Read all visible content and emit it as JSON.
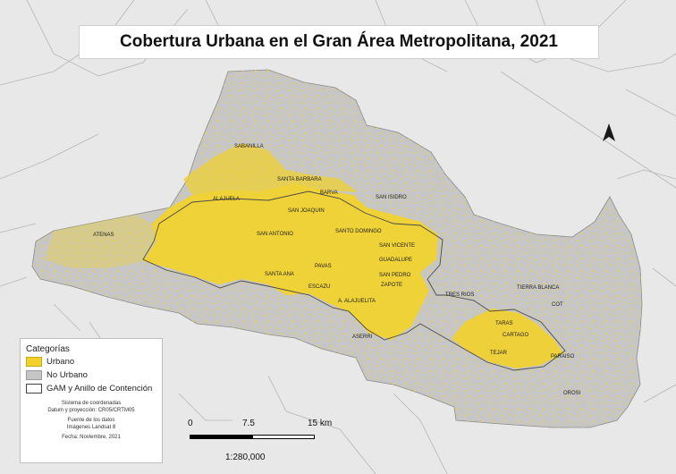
{
  "title": "Cobertura Urbana en el Gran Área Metropolitana, 2021",
  "colors": {
    "background": "#e8e8e8",
    "boundary_lines": "#b8b8b8",
    "no_urbano": "#c6c6c6",
    "urbano": "#f2d22a",
    "gam_outline": "#555555"
  },
  "north_arrow_icon": "north-arrow-icon",
  "place_labels": [
    "SABANILLA",
    "SANTA BARBARA",
    "ALAJUELA",
    "BARVA",
    "SAN ISIDRO",
    "SAN JOAQUIN",
    "ATENAS",
    "SAN ANTONIO",
    "SANTO DOMINGO",
    "SAN VICENTE",
    "GUADALUPE",
    "SANTA ANA",
    "PAVAS",
    "SAN PEDRO",
    "ESCAZU",
    "ZAPOTE",
    "TRES RIOS",
    "TIERRA BLANCA",
    "A. ALAJUELITA",
    "COT",
    "TARAS",
    "CARTAGO",
    "ASERRI",
    "TEJAR",
    "PARAISO",
    "OROSI"
  ],
  "legend": {
    "title": "Categorías",
    "items": [
      {
        "label": "Urbano",
        "color": "#f2d22a"
      },
      {
        "label": "No Urbano",
        "color": "#c6c6c6"
      },
      {
        "label": "GAM y Anillo de Contención",
        "color": "#ffffff"
      }
    ],
    "crs_title": "Sistema de coordenadas",
    "crs_value": "Datum y proyección:  CR05/CRTM05",
    "source_title": "Fuente de los datos",
    "source_value": "Imágenes Landsat 8",
    "date": "Fecha: Noviembre, 2021"
  },
  "scale": {
    "ticks": [
      "0",
      "7.5",
      "15 km"
    ],
    "ratio": "1:280,000"
  }
}
